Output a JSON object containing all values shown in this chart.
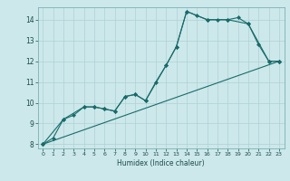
{
  "title": "",
  "xlabel": "Humidex (Indice chaleur)",
  "bg_color": "#cce8ea",
  "grid_color": "#b0d0d4",
  "line_color": "#1a6b6b",
  "xlim": [
    -0.5,
    23.5
  ],
  "ylim": [
    7.8,
    14.6
  ],
  "yticks": [
    8,
    9,
    10,
    11,
    12,
    13,
    14
  ],
  "xticks": [
    0,
    1,
    2,
    3,
    4,
    5,
    6,
    7,
    8,
    9,
    10,
    11,
    12,
    13,
    14,
    15,
    16,
    17,
    18,
    19,
    20,
    21,
    22,
    23
  ],
  "series": [
    {
      "x": [
        0,
        1,
        2,
        3,
        4,
        5,
        6,
        7,
        8,
        9,
        10,
        11,
        12,
        13,
        14,
        15,
        16,
        17,
        18,
        19,
        20,
        21,
        22,
        23
      ],
      "y": [
        8.0,
        8.3,
        9.2,
        9.4,
        9.8,
        9.8,
        9.7,
        9.6,
        10.3,
        10.4,
        10.1,
        11.0,
        11.8,
        12.7,
        14.4,
        14.2,
        14.0,
        14.0,
        14.0,
        14.1,
        13.8,
        12.8,
        12.0,
        12.0
      ]
    },
    {
      "x": [
        0,
        2,
        4,
        5,
        6,
        7,
        8,
        9,
        10,
        12,
        13,
        14,
        16,
        18,
        20,
        22,
        23
      ],
      "y": [
        8.0,
        9.2,
        9.8,
        9.8,
        9.7,
        9.6,
        10.3,
        10.4,
        10.1,
        11.8,
        12.7,
        14.4,
        14.0,
        14.0,
        13.8,
        12.0,
        12.0
      ]
    },
    {
      "x": [
        0,
        23
      ],
      "y": [
        8.0,
        12.0
      ]
    }
  ]
}
